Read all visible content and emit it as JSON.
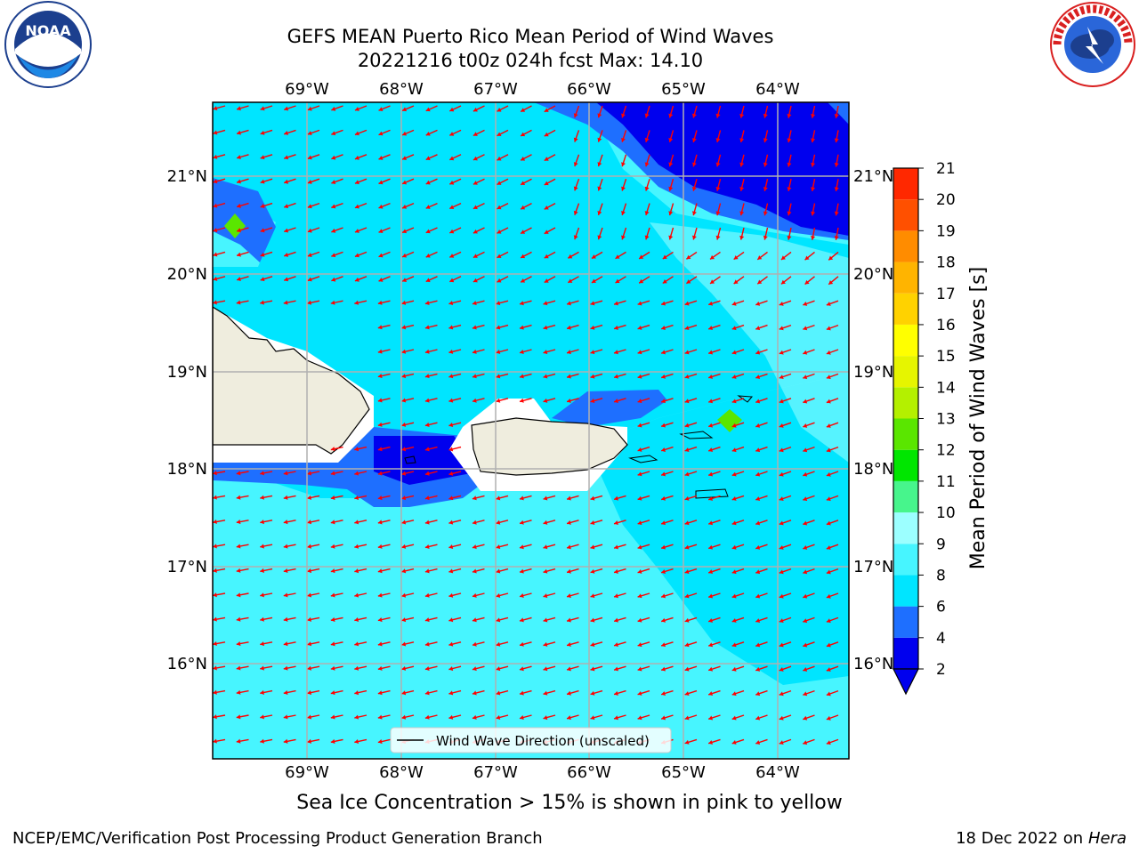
{
  "header": {
    "title_line_1": "GEFS MEAN Puerto Rico Mean Period of Wind Waves",
    "title_line_2": "20221216 t00z 024h fcst   Max: 14.10"
  },
  "logos": {
    "left": {
      "name": "noaa-logo",
      "text": "NOAA",
      "ring_text": "NATIONAL OCEANIC AND ATMOSPHERIC ADMINISTRATION · U.S. DEPARTMENT OF COMMERCE"
    },
    "right": {
      "name": "nws-logo",
      "ring_text": "NATIONAL WEATHER SERVICE"
    }
  },
  "map": {
    "lon_labels": [
      "69°W",
      "68°W",
      "67°W",
      "66°W",
      "65°W",
      "64°W"
    ],
    "lat_labels": [
      "21°N",
      "20°N",
      "19°N",
      "18°N",
      "17°N",
      "16°N"
    ],
    "lon_range": [
      -70.0,
      -63.25
    ],
    "lat_range": [
      15.0,
      21.75
    ],
    "arrow_color": "#ff0000",
    "land_color": "#efedde",
    "legend_label": "Wind Wave Direction (unscaled)"
  },
  "colorbar": {
    "label": "Mean Period of Wind Waves [s]",
    "ticks": [
      "2",
      "4",
      "6",
      "8",
      "9",
      "10",
      "11",
      "12",
      "13",
      "14",
      "15",
      "16",
      "17",
      "18",
      "19",
      "20",
      "21"
    ],
    "colors": [
      "#0000ee",
      "#1e6fff",
      "#00e5ff",
      "#47f5ff",
      "#9cffff",
      "#47f58c",
      "#00e600",
      "#5ae600",
      "#b4f000",
      "#e6f500",
      "#ffff00",
      "#ffd200",
      "#ffb400",
      "#ff8c00",
      "#ff5000",
      "#ff2800",
      "#ff0000"
    ]
  },
  "subtitle": "Sea Ice Concentration > 15% is shown in pink to yellow",
  "footer": {
    "left": "NCEP/EMC/Verification Post Processing Product Generation Branch",
    "right_date": "18 Dec 2022 on",
    "right_host": "Hera"
  }
}
